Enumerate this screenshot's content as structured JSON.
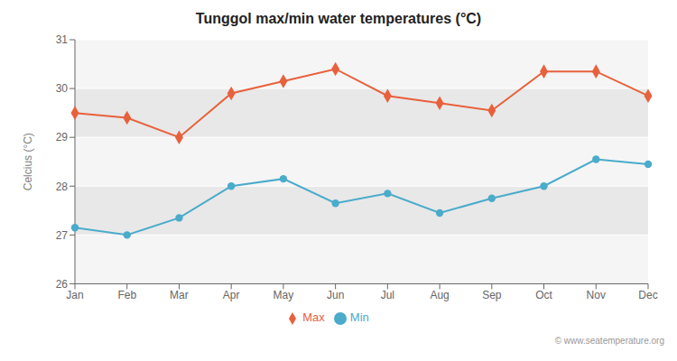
{
  "chart_data": {
    "type": "line",
    "title": "Tunggol max/min water temperatures (°C)",
    "ylabel": "Celcius (°C)",
    "categories": [
      "Jan",
      "Feb",
      "Mar",
      "Apr",
      "May",
      "Jun",
      "Jul",
      "Aug",
      "Sep",
      "Oct",
      "Nov",
      "Dec"
    ],
    "series": [
      {
        "name": "Max",
        "color": "#E8613C",
        "marker": "diamond",
        "values": [
          29.5,
          29.4,
          29.0,
          29.9,
          30.15,
          30.4,
          29.85,
          29.7,
          29.55,
          30.35,
          30.35,
          29.85
        ]
      },
      {
        "name": "Min",
        "color": "#4AABCB",
        "marker": "circle",
        "values": [
          27.15,
          27.0,
          27.35,
          28.0,
          28.15,
          27.65,
          27.85,
          27.45,
          27.75,
          28.0,
          28.55,
          28.45
        ]
      }
    ],
    "ylim": [
      26,
      31
    ],
    "yticks": [
      26,
      27,
      28,
      29,
      30,
      31
    ],
    "grid": true,
    "legend": "bottom",
    "annotations": [
      "© www.seatemperature.org"
    ]
  }
}
